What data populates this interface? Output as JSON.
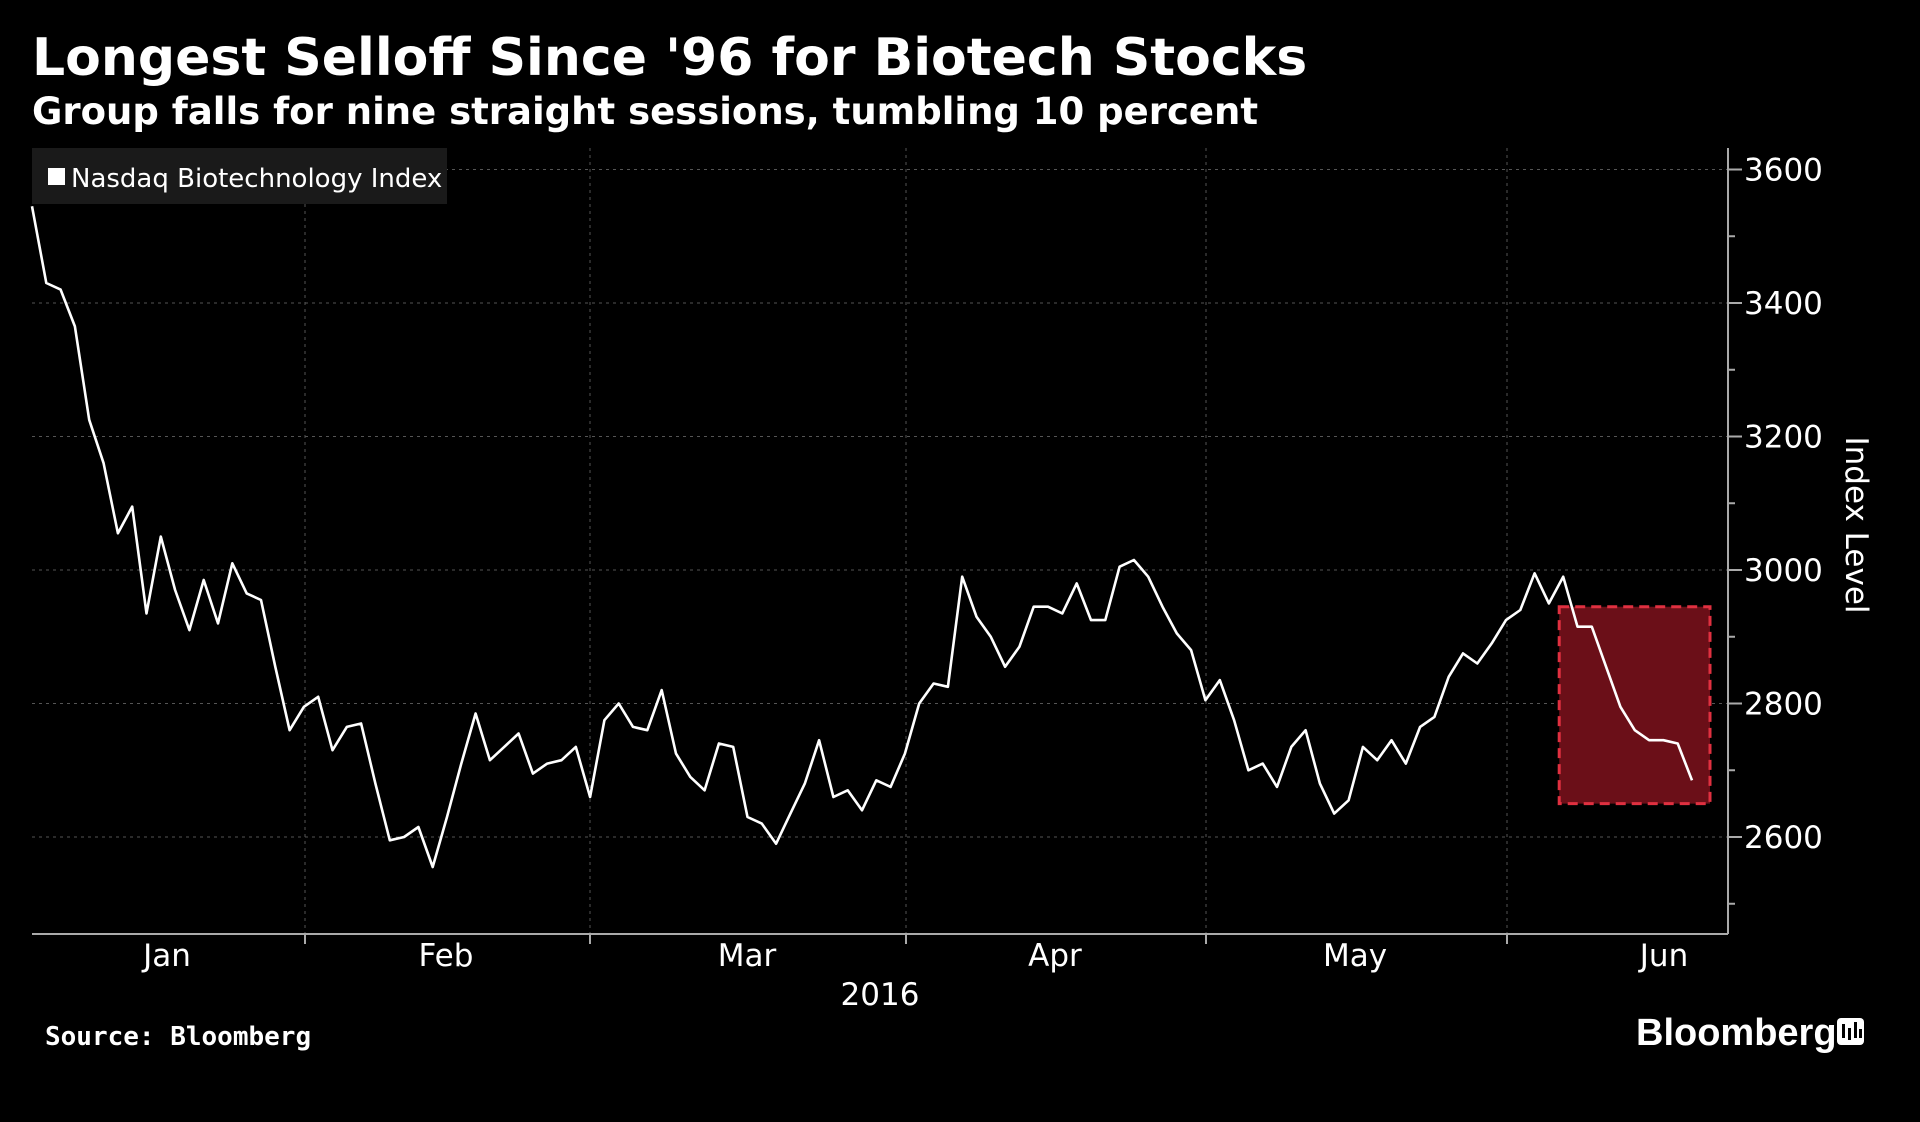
{
  "chart_data": {
    "type": "line",
    "title": "Longest Selloff Since '96 for Biotech Stocks",
    "subtitle": "Group falls for nine straight sessions, tumbling 10 percent",
    "ylabel": "Index Level",
    "xlabel": "2016",
    "ylim": [
      2450,
      3630
    ],
    "yticks": [
      2600,
      2800,
      3000,
      3200,
      3400,
      3600
    ],
    "xticks": [
      "Jan",
      "Feb",
      "Mar",
      "Apr",
      "May",
      "Jun"
    ],
    "grid": true,
    "legend_position": "top-left",
    "series": [
      {
        "name": "Nasdaq Biotechnology Index",
        "color": "#ffffff",
        "values": [
          3545,
          3430,
          3420,
          3365,
          3225,
          3160,
          3055,
          3095,
          2935,
          3050,
          2970,
          2910,
          2985,
          2920,
          3010,
          2965,
          2955,
          2855,
          2760,
          2795,
          2810,
          2730,
          2765,
          2770,
          2680,
          2595,
          2600,
          2615,
          2555,
          2630,
          2710,
          2785,
          2715,
          2735,
          2755,
          2695,
          2710,
          2715,
          2735,
          2660,
          2775,
          2800,
          2765,
          2760,
          2820,
          2725,
          2690,
          2670,
          2740,
          2735,
          2630,
          2620,
          2590,
          2635,
          2680,
          2745,
          2660,
          2670,
          2640,
          2685,
          2675,
          2725,
          2800,
          2830,
          2825,
          2990,
          2930,
          2900,
          2855,
          2885,
          2945,
          2945,
          2935,
          2980,
          2925,
          2925,
          3005,
          3015,
          2990,
          2945,
          2905,
          2880,
          2805,
          2835,
          2775,
          2700,
          2710,
          2675,
          2735,
          2760,
          2680,
          2635,
          2655,
          2735,
          2715,
          2745,
          2710,
          2765,
          2780,
          2840,
          2875,
          2860,
          2890,
          2925,
          2940,
          2995,
          2950,
          2990,
          2915,
          2915,
          2855,
          2795,
          2760,
          2745,
          2745,
          2740,
          2685
        ]
      }
    ],
    "highlight": {
      "description": "nine straight sessions",
      "start_index": 107,
      "end_index": 116,
      "y_range": [
        2650,
        2945
      ],
      "color": "#6b0f18",
      "border_color": "#e03040"
    }
  },
  "legend": {
    "label": "Nasdaq Biotechnology Index"
  },
  "footer": {
    "source": "Source: Bloomberg",
    "brand": "Bloomberg"
  }
}
